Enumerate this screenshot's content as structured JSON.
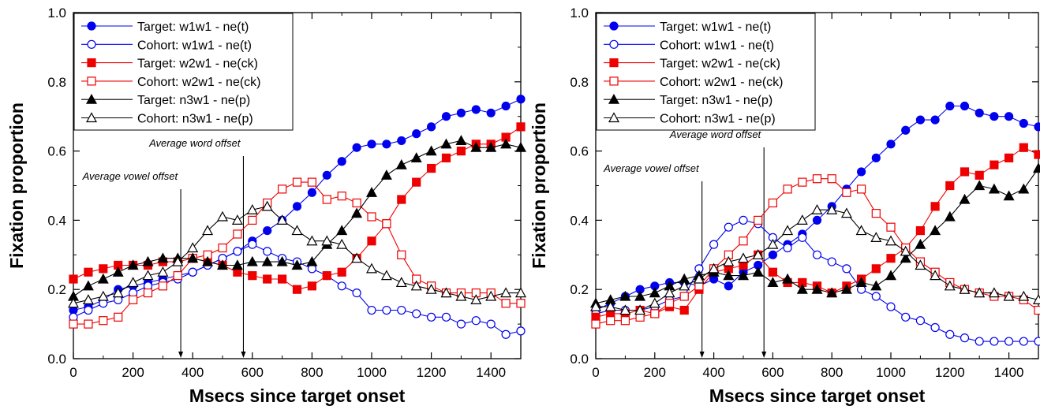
{
  "chart_data": [
    {
      "type": "line",
      "xlabel": "Msecs since target onset",
      "ylabel": "Fixation proportion",
      "xlim": [
        0,
        1500
      ],
      "ylim": [
        0.0,
        1.0
      ],
      "xticks": [
        "0",
        "200",
        "400",
        "600",
        "800",
        "1000",
        "1200",
        "1400"
      ],
      "yticks": [
        "0.0",
        "0.2",
        "0.4",
        "0.6",
        "0.8",
        "1.0"
      ],
      "grid": false,
      "legend_position": "top-left",
      "x": [
        0,
        50,
        100,
        150,
        200,
        250,
        300,
        350,
        400,
        450,
        500,
        550,
        600,
        650,
        700,
        750,
        800,
        850,
        900,
        950,
        1000,
        1050,
        1100,
        1150,
        1200,
        1250,
        1300,
        1350,
        1400,
        1450,
        1500
      ],
      "annotations": [
        {
          "text": "Average vowel offset",
          "x": 360
        },
        {
          "text": "Average word offset",
          "x": 570
        }
      ],
      "series": [
        {
          "name": "Target: w1w1 - ne(t)",
          "color": "#0000ee",
          "marker": "circle",
          "filled": true,
          "values": [
            0.14,
            0.15,
            0.17,
            0.2,
            0.21,
            0.22,
            0.23,
            0.24,
            0.25,
            0.27,
            0.29,
            0.31,
            0.34,
            0.37,
            0.4,
            0.44,
            0.48,
            0.53,
            0.57,
            0.61,
            0.62,
            0.62,
            0.63,
            0.65,
            0.67,
            0.7,
            0.71,
            0.72,
            0.71,
            0.73,
            0.75
          ]
        },
        {
          "name": "Cohort: w1w1 - ne(t)",
          "color": "#0000ee",
          "marker": "circle",
          "filled": false,
          "values": [
            0.12,
            0.14,
            0.16,
            0.17,
            0.19,
            0.21,
            0.22,
            0.23,
            0.25,
            0.27,
            0.29,
            0.31,
            0.33,
            0.31,
            0.29,
            0.28,
            0.26,
            0.24,
            0.21,
            0.19,
            0.14,
            0.14,
            0.14,
            0.13,
            0.12,
            0.12,
            0.1,
            0.11,
            0.1,
            0.07,
            0.08
          ]
        },
        {
          "name": "Target: w2w1 - ne(ck)",
          "color": "#ee0000",
          "marker": "square",
          "filled": true,
          "values": [
            0.23,
            0.25,
            0.26,
            0.27,
            0.27,
            0.27,
            0.28,
            0.28,
            0.29,
            0.28,
            0.27,
            0.25,
            0.24,
            0.23,
            0.23,
            0.2,
            0.21,
            0.24,
            0.25,
            0.29,
            0.34,
            0.39,
            0.46,
            0.51,
            0.55,
            0.58,
            0.6,
            0.62,
            0.62,
            0.64,
            0.67
          ]
        },
        {
          "name": "Cohort: w2w1 - ne(ck)",
          "color": "#ee0000",
          "marker": "square",
          "filled": false,
          "values": [
            0.1,
            0.1,
            0.11,
            0.12,
            0.17,
            0.19,
            0.21,
            0.24,
            0.29,
            0.3,
            0.32,
            0.36,
            0.4,
            0.45,
            0.49,
            0.51,
            0.51,
            0.46,
            0.47,
            0.45,
            0.41,
            0.39,
            0.3,
            0.23,
            0.21,
            0.19,
            0.19,
            0.19,
            0.19,
            0.16,
            0.16
          ]
        },
        {
          "name": "Target: n3w1 - ne(p)",
          "color": "#000000",
          "marker": "triangle",
          "filled": true,
          "values": [
            0.18,
            0.21,
            0.23,
            0.25,
            0.27,
            0.28,
            0.29,
            0.29,
            0.29,
            0.28,
            0.27,
            0.27,
            0.28,
            0.28,
            0.28,
            0.27,
            0.28,
            0.33,
            0.37,
            0.42,
            0.48,
            0.53,
            0.56,
            0.58,
            0.6,
            0.62,
            0.63,
            0.61,
            0.61,
            0.62,
            0.61
          ]
        },
        {
          "name": "Cohort: n3w1 - ne(p)",
          "color": "#000000",
          "marker": "triangle",
          "filled": false,
          "values": [
            0.16,
            0.17,
            0.18,
            0.19,
            0.22,
            0.24,
            0.25,
            0.28,
            0.32,
            0.37,
            0.41,
            0.4,
            0.43,
            0.44,
            0.4,
            0.37,
            0.34,
            0.34,
            0.33,
            0.29,
            0.26,
            0.24,
            0.22,
            0.21,
            0.2,
            0.19,
            0.18,
            0.17,
            0.18,
            0.19,
            0.19
          ]
        }
      ]
    },
    {
      "type": "line",
      "xlabel": "Msecs since target onset",
      "ylabel": "Fixation proportion",
      "xlim": [
        0,
        1500
      ],
      "ylim": [
        0.0,
        1.0
      ],
      "xticks": [
        "0",
        "200",
        "400",
        "600",
        "800",
        "1000",
        "1200",
        "1400"
      ],
      "yticks": [
        "0.0",
        "0.2",
        "0.4",
        "0.6",
        "0.8",
        "1.0"
      ],
      "grid": false,
      "legend_position": "top-left",
      "x": [
        0,
        50,
        100,
        150,
        200,
        250,
        300,
        350,
        400,
        450,
        500,
        550,
        600,
        650,
        700,
        750,
        800,
        850,
        900,
        950,
        1000,
        1050,
        1100,
        1150,
        1200,
        1250,
        1300,
        1350,
        1400,
        1450,
        1500
      ],
      "annotations": [
        {
          "text": "Average vowel offset",
          "x": 360
        },
        {
          "text": "Average word offset",
          "x": 570
        }
      ],
      "series": [
        {
          "name": "Target: w1w1 - ne(t)",
          "color": "#0000ee",
          "marker": "circle",
          "filled": true,
          "values": [
            0.14,
            0.16,
            0.18,
            0.2,
            0.21,
            0.22,
            0.22,
            0.21,
            0.23,
            0.21,
            0.25,
            0.27,
            0.3,
            0.33,
            0.36,
            0.4,
            0.44,
            0.49,
            0.54,
            0.58,
            0.62,
            0.66,
            0.69,
            0.69,
            0.73,
            0.73,
            0.71,
            0.7,
            0.7,
            0.68,
            0.67
          ]
        },
        {
          "name": "Cohort: w1w1 - ne(t)",
          "color": "#0000ee",
          "marker": "circle",
          "filled": false,
          "values": [
            0.13,
            0.14,
            0.14,
            0.14,
            0.15,
            0.17,
            0.18,
            0.26,
            0.33,
            0.38,
            0.4,
            0.39,
            0.35,
            0.32,
            0.35,
            0.3,
            0.28,
            0.26,
            0.2,
            0.18,
            0.15,
            0.12,
            0.11,
            0.09,
            0.07,
            0.06,
            0.05,
            0.05,
            0.05,
            0.05,
            0.05
          ]
        },
        {
          "name": "Target: w2w1 - ne(ck)",
          "color": "#ee0000",
          "marker": "square",
          "filled": true,
          "values": [
            0.12,
            0.13,
            0.13,
            0.14,
            0.13,
            0.15,
            0.14,
            0.2,
            0.25,
            0.26,
            0.27,
            0.3,
            0.25,
            0.22,
            0.22,
            0.21,
            0.19,
            0.21,
            0.23,
            0.26,
            0.29,
            0.32,
            0.37,
            0.44,
            0.5,
            0.54,
            0.53,
            0.56,
            0.58,
            0.61,
            0.59
          ]
        },
        {
          "name": "Cohort: w2w1 - ne(ck)",
          "color": "#ee0000",
          "marker": "square",
          "filled": false,
          "values": [
            0.1,
            0.11,
            0.11,
            0.12,
            0.13,
            0.16,
            0.18,
            0.21,
            0.26,
            0.3,
            0.34,
            0.4,
            0.45,
            0.49,
            0.51,
            0.52,
            0.52,
            0.48,
            0.49,
            0.42,
            0.38,
            0.32,
            0.28,
            0.25,
            0.22,
            0.2,
            0.19,
            0.18,
            0.18,
            0.17,
            0.14
          ]
        },
        {
          "name": "Target: n3w1 - ne(p)",
          "color": "#000000",
          "marker": "triangle",
          "filled": true,
          "values": [
            0.16,
            0.17,
            0.18,
            0.18,
            0.19,
            0.21,
            0.23,
            0.24,
            0.25,
            0.24,
            0.24,
            0.25,
            0.22,
            0.23,
            0.2,
            0.2,
            0.19,
            0.2,
            0.22,
            0.21,
            0.24,
            0.29,
            0.33,
            0.37,
            0.41,
            0.46,
            0.5,
            0.49,
            0.47,
            0.49,
            0.55
          ]
        },
        {
          "name": "Cohort: n3w1 - ne(p)",
          "color": "#000000",
          "marker": "triangle",
          "filled": false,
          "values": [
            0.15,
            0.15,
            0.14,
            0.14,
            0.16,
            0.19,
            0.21,
            0.23,
            0.26,
            0.28,
            0.29,
            0.3,
            0.33,
            0.37,
            0.4,
            0.43,
            0.43,
            0.42,
            0.37,
            0.35,
            0.34,
            0.31,
            0.27,
            0.24,
            0.21,
            0.2,
            0.19,
            0.19,
            0.18,
            0.18,
            0.17
          ]
        }
      ]
    }
  ]
}
